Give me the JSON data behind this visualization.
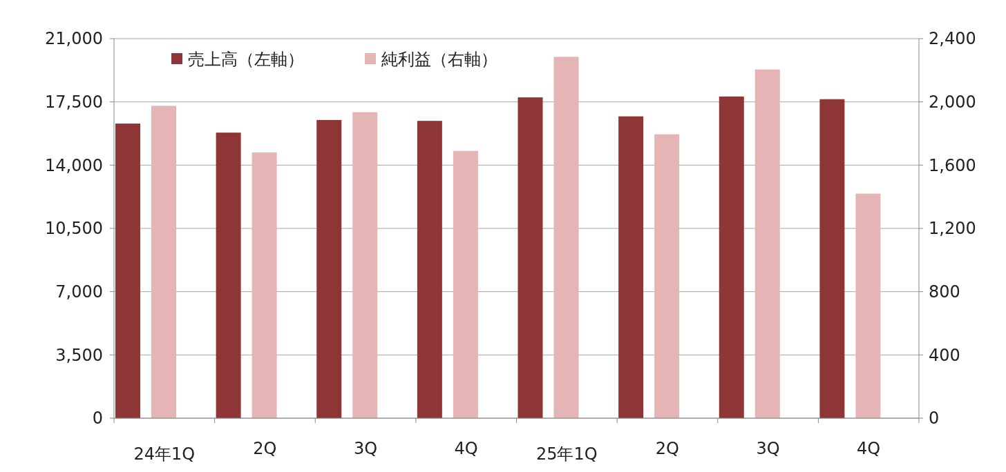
{
  "chart_data": {
    "type": "bar",
    "categories": [
      "24年1Q",
      "2Q",
      "3Q",
      "4Q",
      "25年1Q",
      "2Q",
      "3Q",
      "4Q"
    ],
    "series": [
      {
        "name": "売上高（左軸）",
        "color": "#8e3535",
        "values": [
          16300,
          15800,
          16500,
          16450,
          17750,
          16700,
          17800,
          17650
        ]
      },
      {
        "name": "純利益（右軸）",
        "color": "#e5b4b4",
        "axis": "y2",
        "values": [
          1975,
          1680,
          1935,
          1690,
          2285,
          1795,
          2205,
          1420
        ]
      }
    ],
    "ylim": [
      0,
      21000
    ],
    "yticks": [
      {
        "value": 0,
        "label": "0"
      },
      {
        "value": 3500,
        "label": "3,500"
      },
      {
        "value": 7000,
        "label": "7,000"
      },
      {
        "value": 10500,
        "label": "10,500"
      },
      {
        "value": 14000,
        "label": "14,000"
      },
      {
        "value": 17500,
        "label": "17,500"
      },
      {
        "value": 21000,
        "label": "21,000"
      }
    ],
    "y2lim": [
      0,
      2400
    ],
    "y2ticks": [
      {
        "value": 0,
        "label": "0"
      },
      {
        "value": 400,
        "label": "400"
      },
      {
        "value": 800,
        "label": "800"
      },
      {
        "value": 1200,
        "label": "1,200"
      },
      {
        "value": 1600,
        "label": "1,600"
      },
      {
        "value": 2000,
        "label": "2,000"
      },
      {
        "value": 2400,
        "label": "2,400"
      }
    ],
    "grid": "y",
    "legend": "top left"
  }
}
